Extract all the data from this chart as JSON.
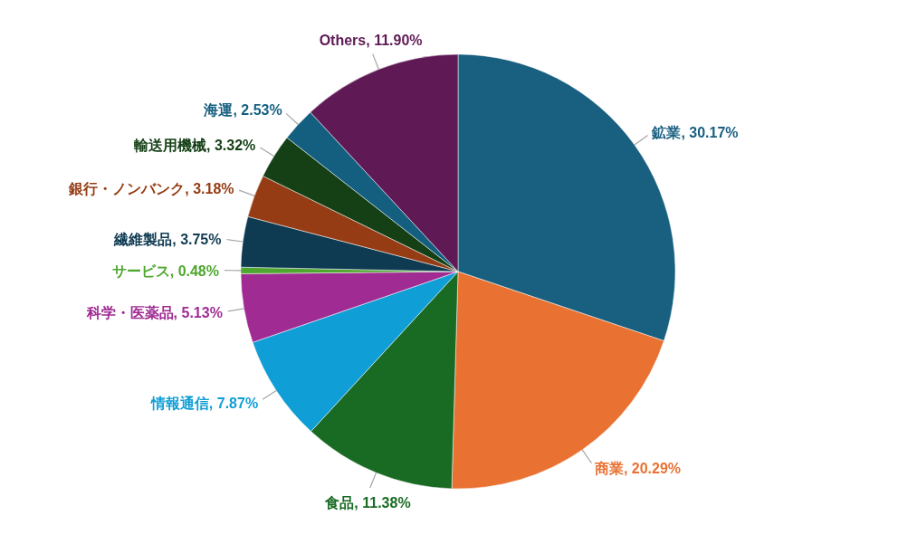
{
  "chart_data": {
    "type": "pie",
    "categories": [
      "鉱業",
      "商業",
      "食品",
      "情報通信",
      "科学・医薬品",
      "サービス",
      "繊維製品",
      "銀行・ノンバンク",
      "輸送用機械",
      "海運",
      "Others"
    ],
    "values": [
      30.17,
      20.29,
      11.38,
      7.87,
      5.13,
      0.48,
      3.75,
      3.18,
      3.32,
      2.53,
      11.9
    ],
    "colors": [
      "#185f80",
      "#e97132",
      "#196b24",
      "#0f9ed5",
      "#a02b93",
      "#4ea72e",
      "#0e3a52",
      "#953c14",
      "#154016",
      "#145f80",
      "#5f1a55"
    ],
    "value_labels": [
      ", 30.17%",
      ", 20.29%",
      ", 11.38%",
      ", 7.87%",
      ", 5.13%",
      ", 0.48%",
      ", 3.75%",
      ", 3.18%",
      ", 3.32%",
      ", 2.53%",
      ", 11.90%"
    ]
  }
}
